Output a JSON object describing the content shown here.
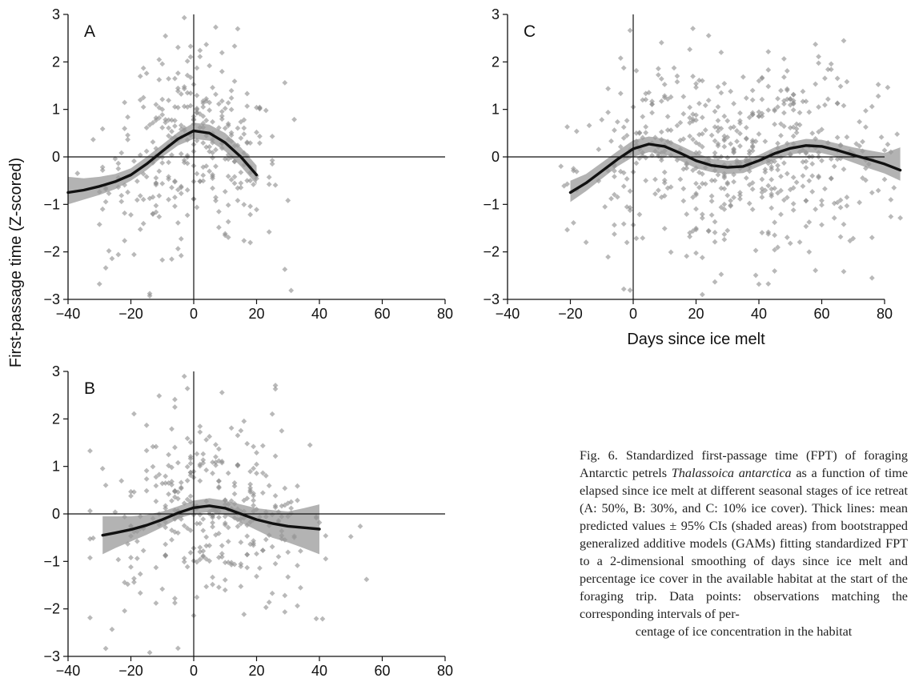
{
  "figure": {
    "shared_ylabel": "First-passage time (Z-scored)",
    "caption": {
      "fig_number": "Fig. 6.",
      "text_before_species": " Standardized first-passage time (FPT) of foraging Antarctic petrels ",
      "species": "Thalassoica antarctica",
      "text_after_species": " as a function of time elapsed since ice melt at different seasonal stages of ice retreat (A: 50%, B: 30%, and C: 10% ice cover). Thick lines: mean predicted values ± 95% CIs (shaded areas) from bootstrapped generalized additive models (GAMs) fitting standardized FPT to a 2-dimensional smoothing of days since ice melt and percentage ice cover in the available habitat at the start of the foraging trip. Data points: observations matching the corresponding intervals of per-",
      "last_line": "centage of ice concentration in the habitat"
    }
  },
  "colors": {
    "points": "#8a8a8a",
    "ci_band": "#9a9a9a",
    "mean_line": "#111111",
    "axes": "#111111"
  },
  "chart_data": [
    {
      "type": "scatter",
      "panel": "A",
      "xlabel": "",
      "xlim": [
        -40,
        80
      ],
      "ylim": [
        -3,
        3
      ],
      "xticks": [
        -40,
        -20,
        0,
        20,
        40,
        60,
        80
      ],
      "yticks": [
        -3,
        -2,
        -1,
        0,
        1,
        2,
        3
      ],
      "reference_lines": {
        "x": 0,
        "y": 0
      },
      "fit_x": [
        -40,
        -35,
        -30,
        -25,
        -20,
        -15,
        -10,
        -5,
        0,
        5,
        10,
        15,
        20
      ],
      "fit_mean": [
        -0.75,
        -0.7,
        -0.62,
        -0.52,
        -0.38,
        -0.15,
        0.12,
        0.38,
        0.55,
        0.5,
        0.3,
        0.0,
        -0.38
      ],
      "fit_lower": [
        -1.0,
        -0.9,
        -0.8,
        -0.68,
        -0.5,
        -0.28,
        0.0,
        0.24,
        0.38,
        0.34,
        0.12,
        -0.2,
        -0.58
      ],
      "fit_upper": [
        -0.42,
        -0.45,
        -0.42,
        -0.36,
        -0.24,
        0.0,
        0.26,
        0.52,
        0.72,
        0.68,
        0.5,
        0.2,
        -0.18
      ]
    },
    {
      "type": "scatter",
      "panel": "B",
      "xlabel": "Days since ice melt",
      "xlim": [
        -40,
        80
      ],
      "ylim": [
        -3,
        3
      ],
      "xticks": [
        -40,
        -20,
        0,
        20,
        40,
        60,
        80
      ],
      "yticks": [
        -3,
        -2,
        -1,
        0,
        1,
        2,
        3
      ],
      "reference_lines": {
        "x": 0,
        "y": 0
      },
      "fit_x": [
        -29,
        -25,
        -20,
        -15,
        -10,
        -5,
        0,
        5,
        10,
        15,
        20,
        25,
        30,
        35,
        40
      ],
      "fit_mean": [
        -0.45,
        -0.4,
        -0.33,
        -0.24,
        -0.12,
        0.02,
        0.13,
        0.17,
        0.12,
        0.0,
        -0.12,
        -0.2,
        -0.26,
        -0.29,
        -0.32
      ],
      "fit_lower": [
        -0.85,
        -0.72,
        -0.58,
        -0.44,
        -0.28,
        -0.1,
        0.0,
        0.04,
        -0.02,
        -0.18,
        -0.34,
        -0.5,
        -0.6,
        -0.72,
        -0.85
      ],
      "fit_upper": [
        -0.05,
        -0.05,
        -0.05,
        -0.02,
        0.05,
        0.16,
        0.28,
        0.33,
        0.28,
        0.2,
        0.12,
        0.08,
        0.05,
        0.12,
        0.2
      ]
    },
    {
      "type": "scatter",
      "panel": "C",
      "xlabel": "Days since ice melt",
      "xlim": [
        -40,
        80
      ],
      "ylim": [
        -3,
        3
      ],
      "xticks": [
        -40,
        -20,
        0,
        20,
        40,
        60,
        80
      ],
      "yticks": [
        -3,
        -2,
        -1,
        0,
        1,
        2,
        3
      ],
      "reference_lines": {
        "x": 0,
        "y": 0
      },
      "fit_x": [
        -20,
        -15,
        -10,
        -5,
        0,
        5,
        10,
        15,
        20,
        25,
        30,
        35,
        40,
        45,
        50,
        55,
        60,
        65,
        70,
        75,
        80,
        85
      ],
      "fit_mean": [
        -0.75,
        -0.55,
        -0.3,
        -0.05,
        0.17,
        0.27,
        0.22,
        0.08,
        -0.08,
        -0.18,
        -0.22,
        -0.2,
        -0.08,
        0.07,
        0.18,
        0.24,
        0.22,
        0.14,
        0.04,
        -0.05,
        -0.15,
        -0.28
      ],
      "fit_lower": [
        -0.95,
        -0.72,
        -0.46,
        -0.2,
        0.0,
        0.1,
        0.06,
        -0.08,
        -0.24,
        -0.32,
        -0.36,
        -0.34,
        -0.2,
        -0.06,
        0.05,
        0.1,
        0.08,
        0.0,
        -0.12,
        -0.24,
        -0.35,
        -0.5
      ],
      "fit_upper": [
        -0.5,
        -0.36,
        -0.12,
        0.12,
        0.35,
        0.43,
        0.38,
        0.24,
        0.08,
        -0.04,
        -0.08,
        -0.06,
        0.04,
        0.2,
        0.31,
        0.38,
        0.36,
        0.28,
        0.2,
        0.14,
        0.08,
        0.2
      ]
    }
  ]
}
